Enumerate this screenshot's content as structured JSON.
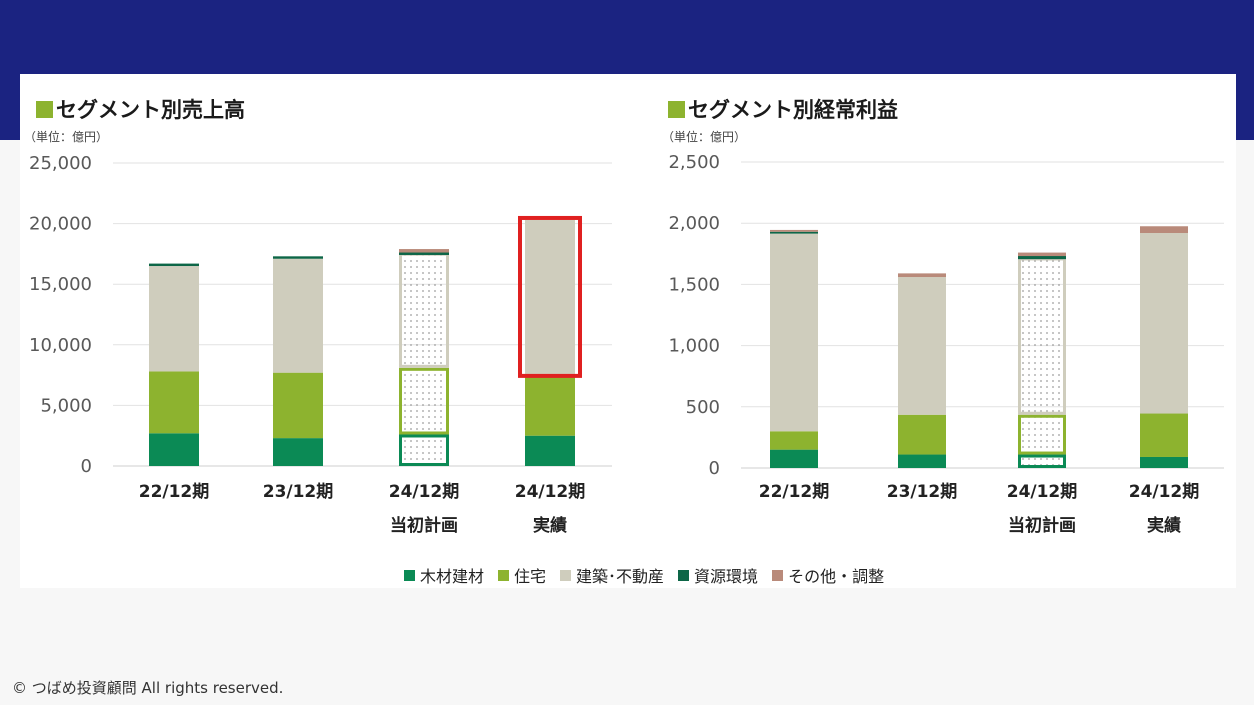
{
  "footer": "© つばめ投資顧問 All rights reserved.",
  "legend": [
    {
      "label": "木材建材",
      "color": "#0b8a55"
    },
    {
      "label": "住宅",
      "color": "#8db32f"
    },
    {
      "label": "建築･不動産",
      "color": "#cfcdbd"
    },
    {
      "label": "資源環境",
      "color": "#0d6647"
    },
    {
      "label": "その他・調整",
      "color": "#b98a7a"
    }
  ],
  "highlight_color": "#e02020",
  "chart_data": [
    {
      "type": "bar",
      "stacked": true,
      "title": "セグメント別売上高",
      "unit_note": "（単位：億円）",
      "categories": [
        [
          "22/12期"
        ],
        [
          "23/12期"
        ],
        [
          "24/12期",
          "当初計画"
        ],
        [
          "24/12期",
          "実績"
        ]
      ],
      "ylim": [
        0,
        25000
      ],
      "yticks": [
        "0",
        "5,000",
        "10,000",
        "15,000",
        "20,000",
        "25,000"
      ],
      "ytick_values": [
        0,
        5000,
        10000,
        15000,
        20000,
        25000
      ],
      "planned_index": 2,
      "highlight_index": 3,
      "series": [
        {
          "name": "木材建材",
          "values": [
            2700,
            2300,
            2600,
            2500
          ]
        },
        {
          "name": "住宅",
          "values": [
            5100,
            5400,
            5500,
            5100
          ]
        },
        {
          "name": "建築･不動産",
          "values": [
            8700,
            9400,
            9500,
            12700
          ]
        },
        {
          "name": "資源環境",
          "values": [
            200,
            200,
            100,
            0
          ]
        },
        {
          "name": "その他・調整",
          "values": [
            0,
            0,
            200,
            0
          ]
        }
      ]
    },
    {
      "type": "bar",
      "stacked": true,
      "title": "セグメント別経常利益",
      "unit_note": "（単位：億円）",
      "categories": [
        [
          "22/12期"
        ],
        [
          "23/12期"
        ],
        [
          "24/12期",
          "当初計画"
        ],
        [
          "24/12期",
          "実績"
        ]
      ],
      "ylim": [
        0,
        2500
      ],
      "yticks": [
        "0",
        "500",
        "1,000",
        "1,500",
        "2,000",
        "2,500"
      ],
      "ytick_values": [
        0,
        500,
        1000,
        1500,
        2000,
        2500
      ],
      "planned_index": 2,
      "highlight_index": -1,
      "series": [
        {
          "name": "木材建材",
          "values": [
            150,
            110,
            110,
            90
          ]
        },
        {
          "name": "住宅",
          "values": [
            150,
            325,
            325,
            355
          ]
        },
        {
          "name": "建築･不動産",
          "values": [
            1615,
            1125,
            1285,
            1475
          ]
        },
        {
          "name": "資源環境",
          "values": [
            15,
            0,
            15,
            0
          ]
        },
        {
          "name": "その他・調整",
          "values": [
            15,
            30,
            25,
            55
          ]
        }
      ]
    }
  ]
}
